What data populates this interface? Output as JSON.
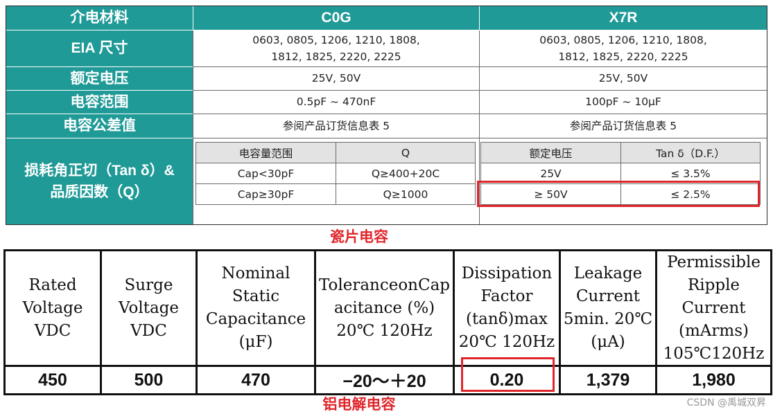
{
  "ceramic": {
    "header": {
      "label": "介电材料",
      "c0g": "C0G",
      "x7r": "X7R"
    },
    "rows": [
      {
        "label": "EIA 尺寸",
        "c0g": "0603, 0805, 1206, 1210, 1808,\n1812, 1825, 2220, 2225",
        "x7r": "0603, 0805, 1206, 1210, 1808,\n1812, 1825, 2220, 2225"
      },
      {
        "label": "额定电压",
        "c0g": "25V, 50V",
        "x7r": "25V, 50V"
      },
      {
        "label": "电容范围",
        "c0g": "0.5pF ~ 470nF",
        "x7r": "100pF ~ 10μF"
      },
      {
        "label": "电容公差值",
        "c0g": "参阅产品订货信息表 5",
        "x7r": "参阅产品订货信息表 5"
      }
    ],
    "loss": {
      "label": "损耗角正切（Tan δ）&\n品质因数（Q）",
      "c0g_table": {
        "headers": [
          "电容量范围",
          "Q"
        ],
        "rows": [
          [
            "Cap<30pF",
            "Q≥400+20C"
          ],
          [
            "Cap≥30pF",
            "Q≥1000"
          ]
        ]
      },
      "x7r_table": {
        "headers": [
          "额定电压",
          "Tan δ（D.F.）"
        ],
        "rows": [
          [
            "25V",
            "≤ 3.5%"
          ],
          [
            "≥ 50V",
            "≤ 2.5%"
          ]
        ]
      }
    },
    "caption": "瓷片电容"
  },
  "electrolytic": {
    "headers": [
      "Rated\nVoltage\nVDC",
      "Surge\nVoltage\nVDC",
      "Nominal\nStatic\nCapacitance\n(μF)",
      "ToleranceonCap\nacitance (%)\n20℃ 120Hz",
      "Dissipation\nFactor\n(tanδ)max\n20℃ 120Hz",
      "Leakage\nCurrent\n5min. 20℃\n(μA)",
      "Permissible\nRipple\nCurrent\n(mArms)\n105℃120Hz"
    ],
    "values": [
      "450",
      "500",
      "470",
      "−20～＋20",
      "0.20",
      "1,379",
      "1,980"
    ],
    "caption": "铝电解电容"
  },
  "watermark": "CSDN @禹城双昇"
}
